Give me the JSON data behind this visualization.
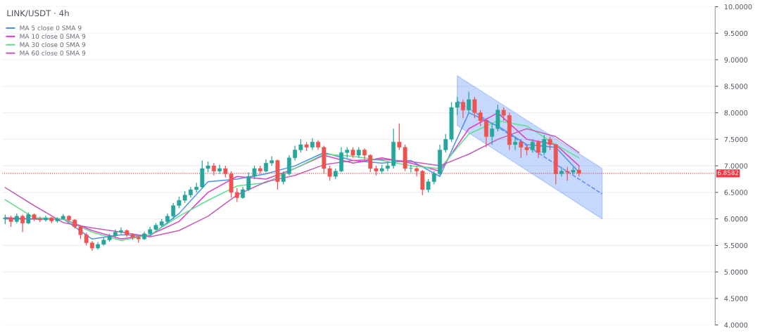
{
  "chart_data": {
    "type": "candlestick",
    "title": "LINK/USDT · 4h",
    "categories": [
      null,
      null,
      null,
      null,
      null,
      null,
      null,
      null,
      null,
      null,
      null,
      null,
      null,
      null,
      null,
      null,
      null,
      null,
      null,
      null,
      null,
      null,
      null,
      null,
      null,
      null,
      null,
      null,
      null,
      null,
      null,
      null,
      null,
      null,
      null,
      null,
      null,
      null,
      null,
      null,
      null,
      null,
      null,
      null,
      null,
      null,
      null,
      null,
      null,
      null,
      null,
      null,
      null,
      null,
      null,
      null,
      null,
      null,
      null,
      null,
      null,
      null,
      null,
      null,
      null,
      null,
      null,
      null,
      null,
      null,
      null,
      null,
      null,
      null,
      null,
      null,
      null,
      null,
      null,
      null,
      null,
      null,
      null,
      null,
      null,
      null,
      null,
      null,
      null,
      null,
      null,
      null,
      null,
      null,
      null,
      null,
      null,
      null,
      null,
      null,
      null,
      null,
      null,
      null,
      null,
      null,
      null,
      null,
      null,
      null,
      null,
      null,
      null,
      null,
      null,
      null,
      null,
      null,
      null,
      null,
      null,
      null,
      null
    ],
    "ohlc": [
      [
        6.0,
        6.08,
        5.9,
        6.02
      ],
      [
        6.02,
        6.06,
        5.85,
        5.95
      ],
      [
        5.95,
        6.1,
        5.92,
        6.05
      ],
      [
        6.05,
        6.08,
        5.75,
        5.92
      ],
      [
        5.92,
        6.12,
        5.9,
        6.08
      ],
      [
        6.08,
        6.1,
        5.96,
        6.0
      ],
      [
        6.0,
        6.04,
        5.94,
        5.98
      ],
      [
        5.98,
        6.06,
        5.95,
        6.02
      ],
      [
        6.02,
        6.04,
        5.92,
        5.96
      ],
      [
        5.96,
        6.03,
        5.93,
        6.0
      ],
      [
        6.0,
        6.09,
        5.98,
        6.05
      ],
      [
        6.05,
        6.07,
        5.95,
        5.98
      ],
      [
        5.98,
        6.0,
        5.82,
        5.85
      ],
      [
        5.85,
        5.88,
        5.62,
        5.7
      ],
      [
        5.7,
        5.74,
        5.5,
        5.55
      ],
      [
        5.55,
        5.58,
        5.4,
        5.45
      ],
      [
        5.45,
        5.56,
        5.42,
        5.52
      ],
      [
        5.52,
        5.64,
        5.5,
        5.6
      ],
      [
        5.6,
        5.72,
        5.57,
        5.68
      ],
      [
        5.68,
        5.8,
        5.65,
        5.75
      ],
      [
        5.75,
        5.84,
        5.72,
        5.78
      ],
      [
        5.78,
        5.8,
        5.66,
        5.7
      ],
      [
        5.7,
        5.73,
        5.6,
        5.65
      ],
      [
        5.65,
        5.68,
        5.55,
        5.62
      ],
      [
        5.62,
        5.76,
        5.6,
        5.72
      ],
      [
        5.72,
        5.85,
        5.7,
        5.8
      ],
      [
        5.8,
        5.92,
        5.78,
        5.88
      ],
      [
        5.88,
        6.0,
        5.85,
        5.95
      ],
      [
        5.95,
        6.1,
        5.92,
        6.05
      ],
      [
        6.05,
        6.3,
        6.0,
        6.25
      ],
      [
        6.25,
        6.42,
        6.2,
        6.35
      ],
      [
        6.35,
        6.52,
        6.3,
        6.45
      ],
      [
        6.45,
        6.6,
        6.4,
        6.55
      ],
      [
        6.55,
        6.68,
        6.5,
        6.6
      ],
      [
        6.6,
        7.1,
        6.58,
        6.95
      ],
      [
        6.95,
        7.08,
        6.88,
        7.0
      ],
      [
        7.0,
        7.05,
        6.82,
        6.9
      ],
      [
        6.9,
        7.02,
        6.85,
        6.95
      ],
      [
        6.95,
        7.0,
        6.78,
        6.85
      ],
      [
        6.85,
        6.9,
        6.4,
        6.5
      ],
      [
        6.5,
        6.58,
        6.32,
        6.4
      ],
      [
        6.4,
        6.6,
        6.38,
        6.55
      ],
      [
        6.55,
        6.88,
        6.52,
        6.8
      ],
      [
        6.8,
        7.0,
        6.75,
        6.95
      ],
      [
        6.95,
        7.0,
        6.85,
        6.9
      ],
      [
        6.9,
        7.12,
        6.88,
        7.05
      ],
      [
        7.05,
        7.18,
        7.0,
        7.1
      ],
      [
        7.1,
        7.12,
        6.55,
        6.7
      ],
      [
        6.7,
        6.9,
        6.65,
        6.85
      ],
      [
        6.85,
        7.2,
        6.82,
        7.15
      ],
      [
        7.15,
        7.38,
        7.1,
        7.3
      ],
      [
        7.3,
        7.5,
        7.25,
        7.4
      ],
      [
        7.4,
        7.45,
        7.28,
        7.35
      ],
      [
        7.35,
        7.52,
        7.3,
        7.45
      ],
      [
        7.45,
        7.48,
        7.3,
        7.35
      ],
      [
        7.35,
        7.38,
        6.85,
        6.95
      ],
      [
        6.95,
        7.0,
        6.72,
        6.8
      ],
      [
        6.8,
        6.95,
        6.75,
        6.9
      ],
      [
        6.9,
        7.35,
        6.88,
        7.25
      ],
      [
        7.25,
        7.35,
        7.15,
        7.3
      ],
      [
        7.3,
        7.35,
        7.15,
        7.2
      ],
      [
        7.2,
        7.35,
        7.15,
        7.3
      ],
      [
        7.3,
        7.33,
        7.12,
        7.2
      ],
      [
        7.2,
        7.22,
        6.88,
        6.95
      ],
      [
        6.95,
        7.0,
        6.82,
        6.9
      ],
      [
        6.9,
        7.02,
        6.85,
        6.95
      ],
      [
        6.95,
        7.08,
        6.9,
        7.0
      ],
      [
        7.0,
        7.7,
        6.95,
        7.45
      ],
      [
        7.45,
        7.8,
        7.3,
        7.35
      ],
      [
        7.35,
        7.4,
        6.9,
        6.95
      ],
      [
        6.95,
        7.02,
        6.88,
        6.95
      ],
      [
        6.95,
        6.98,
        6.8,
        6.9
      ],
      [
        6.9,
        6.92,
        6.45,
        6.55
      ],
      [
        6.55,
        6.75,
        6.5,
        6.7
      ],
      [
        6.7,
        6.9,
        6.65,
        6.85
      ],
      [
        6.85,
        7.4,
        6.82,
        7.3
      ],
      [
        7.3,
        7.6,
        7.25,
        7.5
      ],
      [
        7.5,
        8.2,
        7.45,
        8.1
      ],
      [
        8.1,
        8.3,
        7.95,
        8.2
      ],
      [
        8.2,
        8.25,
        7.9,
        8.05
      ],
      [
        8.05,
        8.4,
        8.0,
        8.25
      ],
      [
        8.25,
        8.3,
        7.9,
        8.0
      ],
      [
        8.0,
        8.05,
        7.75,
        7.85
      ],
      [
        7.85,
        7.9,
        7.35,
        7.55
      ],
      [
        7.55,
        7.8,
        7.4,
        7.7
      ],
      [
        7.7,
        8.15,
        7.65,
        8.05
      ],
      [
        8.05,
        8.1,
        7.85,
        7.95
      ],
      [
        7.95,
        8.0,
        7.3,
        7.4
      ],
      [
        7.4,
        7.55,
        7.3,
        7.45
      ],
      [
        7.45,
        7.5,
        7.15,
        7.35
      ],
      [
        7.35,
        7.4,
        7.2,
        7.3
      ],
      [
        7.3,
        7.5,
        7.25,
        7.45
      ],
      [
        7.45,
        7.48,
        7.15,
        7.25
      ],
      [
        7.25,
        7.58,
        7.2,
        7.5
      ],
      [
        7.5,
        7.55,
        7.3,
        7.4
      ],
      [
        7.4,
        7.42,
        6.65,
        6.85
      ],
      [
        6.85,
        6.98,
        6.8,
        6.9
      ],
      [
        6.9,
        6.98,
        6.72,
        6.88
      ],
      [
        6.88,
        6.98,
        6.84,
        6.92
      ],
      [
        6.92,
        7.0,
        6.8,
        6.8582
      ],
      null,
      null,
      null,
      null,
      null,
      null,
      null,
      null,
      null,
      null,
      null,
      null,
      null,
      null,
      null,
      null,
      null,
      null,
      null,
      null,
      null,
      null,
      null
    ],
    "series": [
      {
        "name": "MA 5 close 0 SMA 9",
        "type": "line",
        "color": "#4f8ff0",
        "values": [
          6.0,
          null,
          null,
          null,
          null,
          6.0,
          null,
          null,
          null,
          null,
          6.0,
          null,
          null,
          null,
          null,
          5.62,
          null,
          null,
          null,
          null,
          5.7,
          null,
          null,
          null,
          null,
          5.68,
          null,
          null,
          null,
          null,
          6.1,
          null,
          null,
          null,
          null,
          6.7,
          null,
          null,
          null,
          null,
          6.75,
          null,
          null,
          null,
          null,
          6.85,
          null,
          null,
          null,
          null,
          7.0,
          null,
          null,
          null,
          null,
          7.25,
          null,
          null,
          null,
          null,
          7.1,
          null,
          null,
          null,
          null,
          7.05,
          null,
          null,
          null,
          null,
          7.1,
          null,
          null,
          null,
          null,
          6.8,
          null,
          null,
          null,
          null,
          8.0,
          null,
          null,
          null,
          null,
          7.75,
          null,
          null,
          null,
          null,
          7.4,
          null,
          null,
          null,
          null,
          7.35,
          null,
          null,
          null,
          6.88,
          null,
          null,
          null,
          null,
          null,
          null,
          null,
          null,
          null,
          null,
          null,
          null,
          null,
          null,
          null,
          null,
          null,
          null,
          null,
          null,
          null,
          null,
          null
        ]
      },
      {
        "name": "MA 10 close 0 SMA 9",
        "type": "line",
        "color": "#e040c8",
        "values": [
          6.02,
          null,
          null,
          null,
          null,
          6.0,
          null,
          null,
          null,
          null,
          6.0,
          null,
          null,
          null,
          null,
          5.78,
          null,
          null,
          null,
          null,
          5.62,
          null,
          null,
          null,
          null,
          5.7,
          null,
          null,
          null,
          null,
          5.95,
          null,
          null,
          null,
          null,
          6.5,
          null,
          null,
          null,
          null,
          6.8,
          null,
          null,
          null,
          null,
          6.75,
          null,
          null,
          null,
          null,
          6.95,
          null,
          null,
          null,
          null,
          7.2,
          null,
          null,
          null,
          null,
          7.05,
          null,
          null,
          null,
          null,
          7.15,
          null,
          null,
          null,
          null,
          7.05,
          null,
          null,
          null,
          null,
          6.9,
          null,
          null,
          null,
          null,
          7.7,
          null,
          null,
          null,
          null,
          8.0,
          null,
          null,
          null,
          null,
          7.5,
          null,
          null,
          null,
          null,
          7.4,
          null,
          null,
          null,
          7.0,
          null,
          null,
          null,
          null,
          null,
          null,
          null,
          null,
          null,
          null,
          null,
          null,
          null,
          null,
          null,
          null,
          null,
          null,
          null,
          null,
          null,
          null,
          null
        ]
      },
      {
        "name": "MA 30 close 0 SMA 9",
        "type": "line",
        "color": "#5fe08a",
        "values": [
          6.36,
          null,
          null,
          null,
          null,
          6.02,
          null,
          null,
          null,
          null,
          6.0,
          null,
          null,
          null,
          null,
          5.75,
          null,
          null,
          null,
          null,
          5.59,
          null,
          null,
          null,
          null,
          5.7,
          null,
          null,
          null,
          null,
          6.05,
          null,
          null,
          null,
          null,
          6.35,
          null,
          null,
          null,
          null,
          6.62,
          null,
          null,
          null,
          null,
          6.68,
          null,
          null,
          null,
          null,
          6.95,
          null,
          null,
          null,
          null,
          7.22,
          null,
          null,
          null,
          null,
          7.18,
          null,
          null,
          null,
          null,
          7.1,
          null,
          null,
          null,
          null,
          7.0,
          null,
          null,
          null,
          null,
          6.95,
          null,
          null,
          null,
          null,
          7.6,
          null,
          null,
          null,
          null,
          7.85,
          null,
          null,
          null,
          null,
          7.75,
          null,
          null,
          null,
          null,
          7.4,
          null,
          null,
          null,
          7.15,
          null,
          null,
          null,
          null,
          null,
          null,
          null,
          null,
          null,
          null,
          null,
          null,
          null,
          null,
          null,
          null,
          null,
          null,
          null,
          null,
          null,
          null,
          null
        ]
      },
      {
        "name": "MA 60 close 0 SMA 9",
        "type": "line",
        "color": "#c45db8",
        "values": [
          6.59,
          null,
          null,
          null,
          null,
          6.25,
          null,
          null,
          null,
          null,
          5.93,
          null,
          null,
          null,
          null,
          5.83,
          null,
          null,
          null,
          null,
          5.75,
          null,
          null,
          null,
          null,
          5.66,
          null,
          null,
          null,
          null,
          5.78,
          null,
          null,
          null,
          null,
          6.05,
          null,
          null,
          null,
          null,
          6.45,
          null,
          null,
          null,
          null,
          6.7,
          null,
          null,
          null,
          null,
          6.82,
          null,
          null,
          null,
          null,
          7.02,
          null,
          null,
          null,
          null,
          7.1,
          null,
          null,
          null,
          null,
          7.12,
          null,
          null,
          null,
          null,
          7.08,
          null,
          null,
          null,
          null,
          7.0,
          null,
          null,
          null,
          null,
          7.22,
          null,
          null,
          null,
          null,
          7.5,
          null,
          null,
          null,
          null,
          7.7,
          null,
          null,
          null,
          null,
          7.55,
          null,
          null,
          null,
          7.25,
          null,
          null,
          null,
          null,
          null,
          null,
          null,
          null,
          null,
          null,
          null,
          null,
          null,
          null,
          null,
          null,
          null,
          null,
          null,
          null,
          null,
          null,
          null
        ]
      },
      {
        "type": "line",
        "color": "#5b8ff9",
        "line_style": "dashed",
        "values": [
          null,
          null,
          null,
          null,
          null,
          null,
          null,
          null,
          null,
          null,
          null,
          null,
          null,
          null,
          null,
          null,
          null,
          null,
          null,
          null,
          null,
          null,
          null,
          null,
          null,
          null,
          null,
          null,
          null,
          null,
          null,
          null,
          null,
          null,
          null,
          null,
          null,
          null,
          null,
          null,
          null,
          null,
          null,
          null,
          null,
          null,
          null,
          null,
          null,
          null,
          null,
          null,
          null,
          null,
          null,
          null,
          null,
          null,
          null,
          null,
          null,
          null,
          null,
          null,
          null,
          null,
          null,
          null,
          null,
          null,
          null,
          null,
          null,
          null,
          null,
          null,
          null,
          null,
          8.22,
          null,
          null,
          null,
          null,
          null,
          null,
          null,
          null,
          null,
          null,
          null,
          null,
          null,
          null,
          null,
          null,
          null,
          null,
          null,
          null,
          null,
          null,
          null,
          null,
          6.47,
          null,
          null,
          null,
          null,
          null,
          null,
          null,
          null,
          null,
          null,
          null,
          null,
          null,
          null,
          null,
          null,
          null,
          null,
          null
        ],
        "lower": [
          null,
          null,
          null,
          null,
          null,
          null,
          null,
          null,
          null,
          null,
          null,
          null,
          null,
          null,
          null,
          null,
          null,
          null,
          null,
          null,
          null,
          null,
          null,
          null,
          null,
          null,
          null,
          null,
          null,
          null,
          null,
          null,
          null,
          null,
          null,
          null,
          null,
          null,
          null,
          null,
          null,
          null,
          null,
          null,
          null,
          null,
          null,
          null,
          null,
          null,
          null,
          null,
          null,
          null,
          null,
          null,
          null,
          null,
          null,
          null,
          null,
          null,
          null,
          null,
          null,
          null,
          null,
          null,
          null,
          null,
          null,
          null,
          null,
          null,
          null,
          null,
          null,
          null,
          7.76,
          null,
          null,
          null,
          null,
          null,
          null,
          null,
          null,
          null,
          null,
          null,
          null,
          null,
          null,
          null,
          null,
          null,
          null,
          null,
          null,
          null,
          null,
          null,
          null,
          6.0,
          null,
          null,
          null,
          null,
          null,
          null,
          null,
          null,
          null,
          null,
          null,
          null,
          null,
          null,
          null,
          null,
          null,
          null,
          null
        ],
        "upper": [
          null,
          null,
          null,
          null,
          null,
          null,
          null,
          null,
          null,
          null,
          null,
          null,
          null,
          null,
          null,
          null,
          null,
          null,
          null,
          null,
          null,
          null,
          null,
          null,
          null,
          null,
          null,
          null,
          null,
          null,
          null,
          null,
          null,
          null,
          null,
          null,
          null,
          null,
          null,
          null,
          null,
          null,
          null,
          null,
          null,
          null,
          null,
          null,
          null,
          null,
          null,
          null,
          null,
          null,
          null,
          null,
          null,
          null,
          null,
          null,
          null,
          null,
          null,
          null,
          null,
          null,
          null,
          null,
          null,
          null,
          null,
          null,
          null,
          null,
          null,
          null,
          null,
          null,
          8.7,
          null,
          null,
          null,
          null,
          null,
          null,
          null,
          null,
          null,
          null,
          null,
          null,
          null,
          null,
          null,
          null,
          null,
          null,
          null,
          null,
          null,
          null,
          null,
          null,
          6.95,
          null,
          null,
          null,
          null,
          null,
          null,
          null,
          null,
          null,
          null,
          null,
          null,
          null,
          null,
          null,
          null,
          null,
          null,
          null
        ]
      }
    ],
    "ylim": [
      4.0,
      10.0
    ],
    "yticks": [
      {
        "value": 4.0,
        "label": "4.0000"
      },
      {
        "value": 4.5,
        "label": "4.5000"
      },
      {
        "value": 5.0,
        "label": "5.0000"
      },
      {
        "value": 5.5,
        "label": "5.5000"
      },
      {
        "value": 6.0,
        "label": "6.0000"
      },
      {
        "value": 6.5,
        "label": "6.5000"
      },
      {
        "value": 7.0,
        "label": "7.0000"
      },
      {
        "value": 7.5,
        "label": "7.5000"
      },
      {
        "value": 8.0,
        "label": "8.0000"
      },
      {
        "value": 8.5,
        "label": "8.5000"
      },
      {
        "value": 9.0,
        "label": "9.0000"
      },
      {
        "value": 9.5,
        "label": "9.5000"
      },
      {
        "value": 10.0,
        "label": "10.0000"
      }
    ],
    "ref_lines": [
      {
        "axis": "y",
        "value": 6.8582,
        "label": "6.8582",
        "color": "#f23645",
        "line_style": "dotted"
      }
    ],
    "grid": "y",
    "legend": "top left",
    "tick_labels": "y"
  }
}
